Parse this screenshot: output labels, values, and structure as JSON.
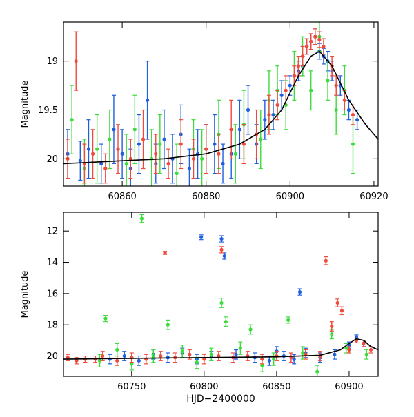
{
  "chart_data": [
    {
      "type": "scatter",
      "panel": "top",
      "xlabel": "",
      "ylabel": "Magnitude",
      "xlim": [
        60846,
        60921
      ],
      "ylim": [
        20.28,
        18.6
      ],
      "y_inverted": true,
      "x_ticks": [
        60860,
        60880,
        60900,
        60920
      ],
      "x_tick_labels": [
        "60860",
        "60880",
        "60900",
        "60920"
      ],
      "y_ticks": [
        19,
        19.5,
        20
      ],
      "y_tick_labels": [
        "19",
        "19.5",
        "20"
      ],
      "grid": false,
      "legend": "none",
      "series": [
        {
          "color": "#1f5fe0",
          "x": [
            60847,
            60850,
            60852,
            60855,
            60858,
            60860,
            60862,
            60864,
            60866,
            60868,
            60870,
            60872,
            60874,
            60876,
            60878,
            60880,
            60882,
            60884,
            60886,
            60888,
            60890,
            60892,
            60894,
            60896,
            60898,
            60900,
            60902,
            60903,
            60904,
            60905,
            60906,
            60907,
            60908,
            60909,
            60910,
            60912,
            60914,
            60916
          ],
          "y": [
            19.95,
            20.02,
            19.9,
            20.05,
            19.7,
            19.95,
            20.1,
            19.85,
            19.4,
            20.05,
            19.8,
            20.0,
            19.75,
            20.1,
            19.95,
            19.9,
            19.85,
            20.05,
            19.95,
            19.7,
            19.5,
            19.85,
            19.6,
            19.55,
            19.35,
            19.25,
            19.1,
            19.05,
            18.85,
            18.8,
            18.75,
            18.9,
            18.95,
            19.0,
            19.1,
            19.25,
            19.5,
            19.6
          ],
          "err": [
            0.25,
            0.2,
            0.3,
            0.2,
            0.35,
            0.25,
            0.2,
            0.3,
            0.4,
            0.2,
            0.3,
            0.25,
            0.3,
            0.2,
            0.25,
            0.25,
            0.3,
            0.2,
            0.25,
            0.3,
            0.25,
            0.2,
            0.2,
            0.15,
            0.15,
            0.1,
            0.1,
            0.1,
            0.08,
            0.08,
            0.08,
            0.08,
            0.08,
            0.1,
            0.1,
            0.1,
            0.1,
            0.1
          ]
        },
        {
          "color": "#3ddc3d",
          "x": [
            60848,
            60851,
            60854,
            60857,
            60861,
            60863,
            60867,
            60869,
            60873,
            60877,
            60879,
            60883,
            60887,
            60889,
            60893,
            60895,
            60897,
            60899,
            60901,
            60903,
            60905,
            60907,
            60909,
            60911,
            60913,
            60915
          ],
          "y": [
            19.6,
            20.1,
            19.9,
            19.8,
            20.05,
            19.7,
            20.0,
            19.85,
            20.15,
            19.9,
            20.0,
            19.75,
            19.95,
            19.65,
            19.8,
            19.4,
            19.3,
            19.45,
            19.15,
            18.95,
            19.3,
            18.75,
            19.2,
            19.5,
            19.3,
            19.85
          ],
          "err": [
            0.35,
            0.3,
            0.35,
            0.3,
            0.3,
            0.35,
            0.3,
            0.3,
            0.3,
            0.3,
            0.3,
            0.35,
            0.3,
            0.35,
            0.3,
            0.3,
            0.25,
            0.25,
            0.25,
            0.2,
            0.2,
            0.15,
            0.2,
            0.25,
            0.25,
            0.3
          ]
        },
        {
          "color": "#f04a3a",
          "x": [
            60847,
            60849,
            60851,
            60853,
            60856,
            60859,
            60862,
            60865,
            60868,
            60871,
            60874,
            60877,
            60880,
            60883,
            60886,
            60889,
            60892,
            60895,
            60897,
            60899,
            60901,
            60902,
            60903,
            60904,
            60905,
            60906,
            60907,
            60908,
            60910,
            60911,
            60913,
            60915
          ],
          "y": [
            20.0,
            19.0,
            20.05,
            19.95,
            20.1,
            19.9,
            20.0,
            19.8,
            19.95,
            20.05,
            19.85,
            20.0,
            19.9,
            19.95,
            19.7,
            19.85,
            19.75,
            19.55,
            19.45,
            19.3,
            19.15,
            19.05,
            18.95,
            18.85,
            18.8,
            18.75,
            18.78,
            18.85,
            19.05,
            19.25,
            19.4,
            19.55
          ],
          "err": [
            0.2,
            0.3,
            0.2,
            0.25,
            0.15,
            0.25,
            0.2,
            0.3,
            0.2,
            0.15,
            0.25,
            0.2,
            0.25,
            0.2,
            0.3,
            0.2,
            0.25,
            0.2,
            0.15,
            0.15,
            0.1,
            0.1,
            0.1,
            0.08,
            0.08,
            0.08,
            0.08,
            0.08,
            0.1,
            0.1,
            0.1,
            0.1
          ]
        }
      ],
      "model_curve": {
        "color": "#000000",
        "x": [
          60846,
          60860,
          60870,
          60880,
          60888,
          60894,
          60898,
          60902,
          60905,
          60907,
          60910,
          60914,
          60918,
          60921
        ],
        "y": [
          20.05,
          20.02,
          20.0,
          19.95,
          19.85,
          19.7,
          19.5,
          19.15,
          18.95,
          18.9,
          19.05,
          19.4,
          19.65,
          19.8
        ]
      }
    },
    {
      "type": "scatter",
      "panel": "bottom",
      "xlabel": "HJD−2400000",
      "ylabel": "Magnitude",
      "xlim": [
        60703,
        60920
      ],
      "ylim": [
        21.3,
        10.8
      ],
      "y_inverted": true,
      "x_ticks": [
        60750,
        60800,
        60850,
        60900
      ],
      "x_tick_labels": [
        "60750",
        "60800",
        "60850",
        "60900"
      ],
      "y_ticks": [
        12,
        14,
        16,
        18,
        20
      ],
      "y_tick_labels": [
        "12",
        "14",
        "16",
        "18",
        "20"
      ],
      "grid": false,
      "legend": "none",
      "series": [
        {
          "color": "#1f5fe0",
          "x": [
            60735,
            60745,
            60755,
            60765,
            60775,
            60785,
            60795,
            60798,
            60805,
            60812,
            60814,
            60822,
            60835,
            60845,
            60850,
            60855,
            60862,
            60866,
            60870,
            60880,
            60890,
            60900,
            60905,
            60910
          ],
          "y": [
            20.2,
            20.0,
            20.3,
            19.9,
            20.1,
            19.8,
            20.2,
            12.4,
            20.0,
            12.5,
            13.6,
            19.9,
            20.1,
            20.3,
            19.7,
            20.0,
            20.2,
            15.9,
            19.8,
            20.1,
            19.9,
            19.3,
            18.8,
            19.2
          ],
          "err": [
            0.3,
            0.3,
            0.3,
            0.3,
            0.3,
            0.3,
            0.3,
            0.15,
            0.3,
            0.2,
            0.2,
            0.3,
            0.3,
            0.3,
            0.3,
            0.3,
            0.3,
            0.2,
            0.3,
            0.3,
            0.3,
            0.2,
            0.15,
            0.2
          ]
        },
        {
          "color": "#3ddc3d",
          "x": [
            60728,
            60732,
            60740,
            60750,
            60757,
            60765,
            60775,
            60785,
            60795,
            60805,
            60812,
            60815,
            60825,
            60832,
            60840,
            60848,
            60858,
            60868,
            60878,
            60888,
            60898,
            60912
          ],
          "y": [
            20.3,
            17.6,
            19.6,
            20.5,
            11.2,
            20.0,
            18.0,
            19.7,
            20.4,
            19.9,
            16.6,
            17.8,
            19.5,
            18.3,
            20.6,
            20.2,
            17.7,
            19.8,
            21.0,
            18.6,
            19.5,
            19.9
          ],
          "err": [
            0.4,
            0.2,
            0.4,
            0.4,
            0.25,
            0.4,
            0.3,
            0.4,
            0.4,
            0.4,
            0.3,
            0.3,
            0.4,
            0.3,
            0.4,
            0.4,
            0.2,
            0.4,
            0.4,
            0.3,
            0.3,
            0.3
          ]
        },
        {
          "color": "#f04a3a",
          "x": [
            60706,
            60712,
            60718,
            60725,
            60730,
            60740,
            60750,
            60760,
            60770,
            60773,
            60780,
            60790,
            60800,
            60810,
            60812,
            60820,
            60830,
            60840,
            60850,
            60860,
            60870,
            60880,
            60884,
            60888,
            60892,
            60895,
            60900,
            60905,
            60910,
            60915
          ],
          "y": [
            20.1,
            20.3,
            20.2,
            20.2,
            20.0,
            20.3,
            20.1,
            20.2,
            20.0,
            13.4,
            20.1,
            19.9,
            20.2,
            20.0,
            13.2,
            20.1,
            20.0,
            20.2,
            20.0,
            20.1,
            19.9,
            20.0,
            13.9,
            18.1,
            16.6,
            17.1,
            19.6,
            19.0,
            19.2,
            19.6
          ],
          "err": [
            0.2,
            0.2,
            0.2,
            0.2,
            0.3,
            0.3,
            0.3,
            0.3,
            0.3,
            0.1,
            0.3,
            0.3,
            0.3,
            0.3,
            0.2,
            0.3,
            0.3,
            0.3,
            0.3,
            0.3,
            0.3,
            0.3,
            0.25,
            0.3,
            0.25,
            0.25,
            0.2,
            0.15,
            0.2,
            0.2
          ]
        }
      ],
      "model_curve": {
        "color": "#000000",
        "x": [
          60703,
          60750,
          60800,
          60850,
          60880,
          60894,
          60900,
          60905,
          60910,
          60915,
          60920
        ],
        "y": [
          20.2,
          20.15,
          20.1,
          20.05,
          19.95,
          19.6,
          19.2,
          18.9,
          19.0,
          19.4,
          19.6
        ]
      }
    }
  ]
}
